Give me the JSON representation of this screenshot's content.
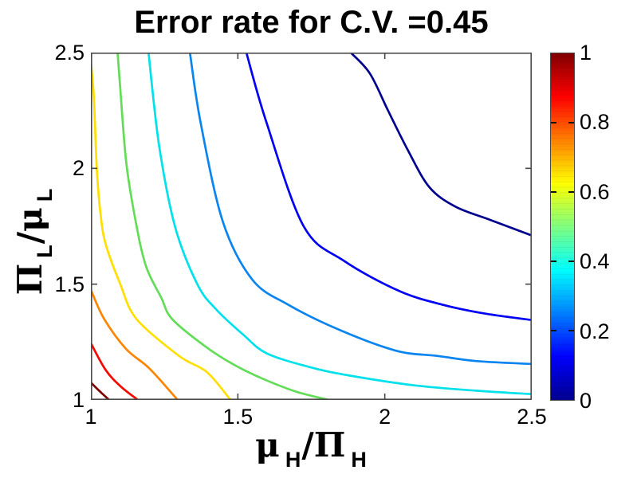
{
  "title": "Error rate for C.V. =0.45",
  "axes": {
    "x": {
      "label_parts": {
        "base": "μ",
        "sub1": "H",
        "slash": "/Π",
        "sub2": "H"
      },
      "range": [
        1,
        2.5
      ],
      "ticks": [
        {
          "value": 1,
          "label": "1"
        },
        {
          "value": 1.5,
          "label": "1.5"
        },
        {
          "value": 2,
          "label": "2"
        },
        {
          "value": 2.5,
          "label": "2.5"
        }
      ]
    },
    "y": {
      "label_parts": {
        "base": "Π",
        "sub1": "L",
        "slash": "/μ",
        "sub2": "L"
      },
      "range": [
        1,
        2.5
      ],
      "ticks": [
        {
          "value": 1,
          "label": "1"
        },
        {
          "value": 1.5,
          "label": "1.5"
        },
        {
          "value": 2,
          "label": "2"
        },
        {
          "value": 2.5,
          "label": "2.5"
        }
      ]
    }
  },
  "colorbar": {
    "range": [
      0,
      1
    ],
    "bands": 64,
    "ticks": [
      {
        "value": 0,
        "label": "0",
        "mark": false
      },
      {
        "value": 0.2,
        "label": "0.2",
        "mark": true
      },
      {
        "value": 0.4,
        "label": "0.4",
        "mark": true
      },
      {
        "value": 0.6,
        "label": "0.6",
        "mark": true
      },
      {
        "value": 0.8,
        "label": "0.8",
        "mark": true
      },
      {
        "value": 1,
        "label": "1",
        "mark": false
      }
    ],
    "gradient_stops": [
      {
        "at": 0,
        "color": "#00008F"
      },
      {
        "at": 0.125,
        "color": "#0000FF"
      },
      {
        "at": 0.375,
        "color": "#00FFFF"
      },
      {
        "at": 0.625,
        "color": "#FFFF00"
      },
      {
        "at": 0.875,
        "color": "#FF0000"
      },
      {
        "at": 1,
        "color": "#800000"
      }
    ]
  },
  "chart_data": {
    "type": "contour",
    "title": "Error rate for C.V. =0.45",
    "xlabel": "mu_H/Pi_H",
    "ylabel": "Pi_L/mu_L",
    "xlim": [
      1,
      2.5
    ],
    "ylim": [
      1,
      2.5
    ],
    "grid": false,
    "colormap": "jet",
    "color_scale": [
      0,
      1
    ],
    "levels": [
      0.1,
      0.2,
      0.3,
      0.4,
      0.5,
      0.6,
      0.7,
      0.8,
      0.9
    ],
    "contours": [
      {
        "level": 0.1,
        "color": "#00008F",
        "points": [
          [
            1.884,
            2.5
          ],
          [
            1.949,
            2.41
          ],
          [
            2.011,
            2.25
          ],
          [
            2.078,
            2.08
          ],
          [
            2.151,
            1.92
          ],
          [
            2.24,
            1.835
          ],
          [
            2.36,
            1.777
          ],
          [
            2.5,
            1.71
          ]
        ]
      },
      {
        "level": 0.2,
        "color": "#0000F5",
        "points": [
          [
            1.529,
            2.5
          ],
          [
            1.597,
            2.2
          ],
          [
            1.724,
            1.75
          ],
          [
            1.862,
            1.6
          ],
          [
            2.05,
            1.47
          ],
          [
            2.2,
            1.41
          ],
          [
            2.34,
            1.373
          ],
          [
            2.5,
            1.345
          ]
        ]
      },
      {
        "level": 0.3,
        "color": "#0A85F0",
        "points": [
          [
            1.337,
            2.5
          ],
          [
            1.373,
            2.2
          ],
          [
            1.449,
            1.77
          ],
          [
            1.549,
            1.52
          ],
          [
            1.673,
            1.41
          ],
          [
            1.85,
            1.3
          ],
          [
            2.04,
            1.212
          ],
          [
            2.18,
            1.19
          ],
          [
            2.31,
            1.168
          ],
          [
            2.5,
            1.155
          ]
        ]
      },
      {
        "level": 0.4,
        "color": "#00E1EB",
        "points": [
          [
            1.196,
            2.5
          ],
          [
            1.232,
            2.1
          ],
          [
            1.286,
            1.75
          ],
          [
            1.362,
            1.5
          ],
          [
            1.427,
            1.39
          ],
          [
            1.52,
            1.28
          ],
          [
            1.6,
            1.2
          ],
          [
            1.75,
            1.14
          ],
          [
            1.881,
            1.105
          ],
          [
            2.1,
            1.063
          ],
          [
            2.31,
            1.04
          ],
          [
            2.5,
            1.025
          ]
        ]
      },
      {
        "level": 0.5,
        "color": "#63DC58",
        "points": [
          [
            1.091,
            2.5
          ],
          [
            1.098,
            2.38
          ],
          [
            1.12,
            2.03
          ],
          [
            1.151,
            1.78
          ],
          [
            1.187,
            1.58
          ],
          [
            1.24,
            1.44
          ],
          [
            1.276,
            1.35
          ],
          [
            1.384,
            1.236
          ],
          [
            1.484,
            1.154
          ],
          [
            1.584,
            1.092
          ],
          [
            1.7,
            1.035
          ],
          [
            1.81,
            1.0
          ]
        ]
      },
      {
        "level": 0.6,
        "color": "#FFDF00",
        "points": [
          [
            1.0,
            2.46
          ],
          [
            1.01,
            2.31
          ],
          [
            1.02,
            2.0
          ],
          [
            1.033,
            1.8
          ],
          [
            1.051,
            1.67
          ],
          [
            1.1,
            1.5
          ],
          [
            1.155,
            1.35
          ],
          [
            1.3,
            1.19
          ],
          [
            1.395,
            1.12
          ],
          [
            1.475,
            1.0
          ]
        ]
      },
      {
        "level": 0.7,
        "color": "#FF8400",
        "points": [
          [
            1.0,
            1.475
          ],
          [
            1.045,
            1.35
          ],
          [
            1.12,
            1.22
          ],
          [
            1.2,
            1.135
          ],
          [
            1.295,
            1.0
          ]
        ]
      },
      {
        "level": 0.8,
        "color": "#F60800",
        "points": [
          [
            1.0,
            1.245
          ],
          [
            1.05,
            1.13
          ],
          [
            1.1,
            1.06
          ],
          [
            1.16,
            1.0
          ]
        ]
      },
      {
        "level": 0.9,
        "color": "#7E0000",
        "points": [
          [
            1.0,
            1.075
          ],
          [
            1.028,
            1.04
          ],
          [
            1.062,
            1.0
          ]
        ]
      }
    ]
  }
}
